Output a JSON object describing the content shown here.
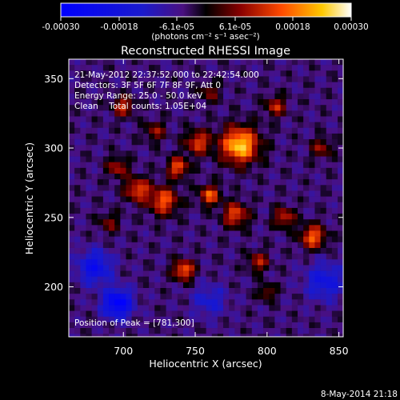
{
  "colorbar": {
    "tick_labels": [
      "-0.00030",
      "-0.00018",
      "-6.1e-05",
      "6.1e-05",
      "0.00018",
      "0.00030"
    ],
    "unit_label": "(photons cm⁻² s⁻¹ asec⁻²)",
    "range": [
      -0.0003,
      0.0003
    ]
  },
  "chart_data": {
    "type": "heatmap",
    "title": "Reconstructed RHESSI Image",
    "xlabel": "Heliocentric X (arcsec)",
    "ylabel": "Heliocentric Y (arcsec)",
    "xlim": [
      662,
      853
    ],
    "ylim": [
      164,
      364
    ],
    "x_ticks": [
      700,
      750,
      800,
      850
    ],
    "y_ticks": [
      200,
      250,
      300,
      350
    ],
    "x_tick_labels": [
      "700",
      "750",
      "800",
      "850"
    ],
    "y_tick_labels": [
      "200",
      "250",
      "300",
      "350"
    ],
    "annotations": [
      "21-May-2012 22:37:52.000 to 22:42:54.000",
      "Detectors: 3F 5F 6F 7F 8F 9F, Att 0",
      "Energy Range: 25.0 - 50.0 keV",
      "Clean    Total counts: 1.05E+04"
    ],
    "peak_label": "Position of Peak = [781,300]",
    "peak": [
      781,
      300
    ],
    "total_counts": 10500,
    "energy_range_keV": [
      25.0,
      50.0
    ],
    "sources": [
      {
        "x": 781,
        "y": 302,
        "amp": 0.0003,
        "sigma": 9
      },
      {
        "x": 752,
        "y": 304,
        "amp": 0.00018,
        "sigma": 6
      },
      {
        "x": 738,
        "y": 286,
        "amp": 0.0002,
        "sigma": 5
      },
      {
        "x": 728,
        "y": 262,
        "amp": 0.0002,
        "sigma": 7
      },
      {
        "x": 710,
        "y": 270,
        "amp": 0.00019,
        "sigma": 6
      },
      {
        "x": 696,
        "y": 286,
        "amp": 0.00014,
        "sigma": 5
      },
      {
        "x": 700,
        "y": 330,
        "amp": 0.00016,
        "sigma": 5
      },
      {
        "x": 722,
        "y": 312,
        "amp": 0.00012,
        "sigma": 5
      },
      {
        "x": 760,
        "y": 266,
        "amp": 0.0002,
        "sigma": 5
      },
      {
        "x": 778,
        "y": 252,
        "amp": 0.00019,
        "sigma": 6
      },
      {
        "x": 742,
        "y": 212,
        "amp": 0.00022,
        "sigma": 5
      },
      {
        "x": 812,
        "y": 250,
        "amp": 0.00016,
        "sigma": 5
      },
      {
        "x": 832,
        "y": 236,
        "amp": 0.00021,
        "sigma": 6
      },
      {
        "x": 806,
        "y": 330,
        "amp": 0.00015,
        "sigma": 5
      },
      {
        "x": 838,
        "y": 300,
        "amp": 0.00012,
        "sigma": 5
      },
      {
        "x": 794,
        "y": 218,
        "amp": 0.00014,
        "sigma": 5
      },
      {
        "x": 800,
        "y": 196,
        "amp": 0.00012,
        "sigma": 4
      },
      {
        "x": 760,
        "y": 340,
        "amp": 0.0001,
        "sigma": 5
      },
      {
        "x": 690,
        "y": 246,
        "amp": 0.0001,
        "sigma": 5
      },
      {
        "x": 680,
        "y": 214,
        "amp": -0.00018,
        "sigma": 8
      },
      {
        "x": 696,
        "y": 188,
        "amp": -0.00026,
        "sigma": 7
      },
      {
        "x": 840,
        "y": 204,
        "amp": -0.00014,
        "sigma": 9
      },
      {
        "x": 760,
        "y": 190,
        "amp": -0.0001,
        "sigma": 8
      }
    ]
  },
  "footer": {
    "timestamp": "8-May-2014 21:18"
  }
}
